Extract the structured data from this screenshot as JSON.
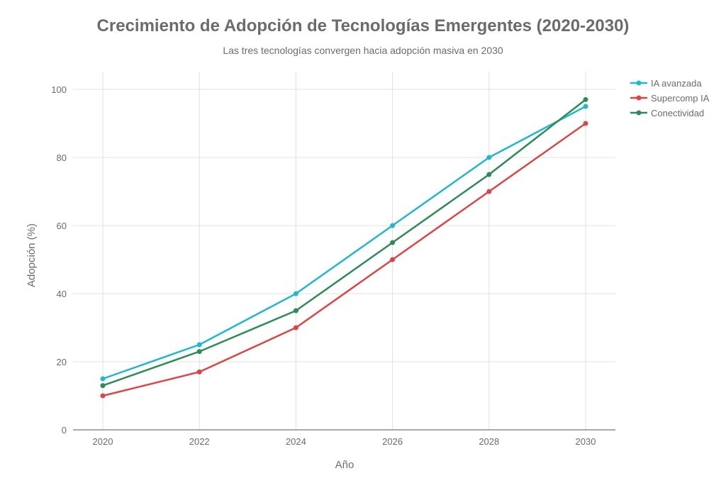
{
  "chart_data": {
    "type": "line",
    "title": "Crecimiento de Adopción de Tecnologías Emergentes (2020-2030)",
    "subtitle": "Las tres tecnologías convergen hacia adopción masiva en 2030",
    "xlabel": "Año",
    "ylabel": "Adopción (%)",
    "x": [
      2020,
      2022,
      2024,
      2026,
      2028,
      2030
    ],
    "x_tick_labels": [
      "2020",
      "2022",
      "2024",
      "2026",
      "2028",
      "2030"
    ],
    "y_ticks": [
      0,
      20,
      40,
      60,
      80,
      100
    ],
    "y_tick_labels": [
      "0",
      "20",
      "40",
      "60",
      "80",
      "100"
    ],
    "xlim": [
      2019.4,
      2030.6
    ],
    "ylim": [
      0,
      105
    ],
    "grid": true,
    "legend_position": "top-right",
    "series": [
      {
        "name": "IA avanzada",
        "color": "#1FB8CD",
        "values": [
          15,
          25,
          40,
          60,
          80,
          95
        ]
      },
      {
        "name": "Supercomp IA",
        "color": "#DB4545",
        "values": [
          10,
          17,
          30,
          50,
          70,
          90
        ]
      },
      {
        "name": "Conectividad",
        "color": "#2E8B57",
        "values": [
          13,
          23,
          35,
          55,
          75,
          97
        ]
      }
    ]
  }
}
